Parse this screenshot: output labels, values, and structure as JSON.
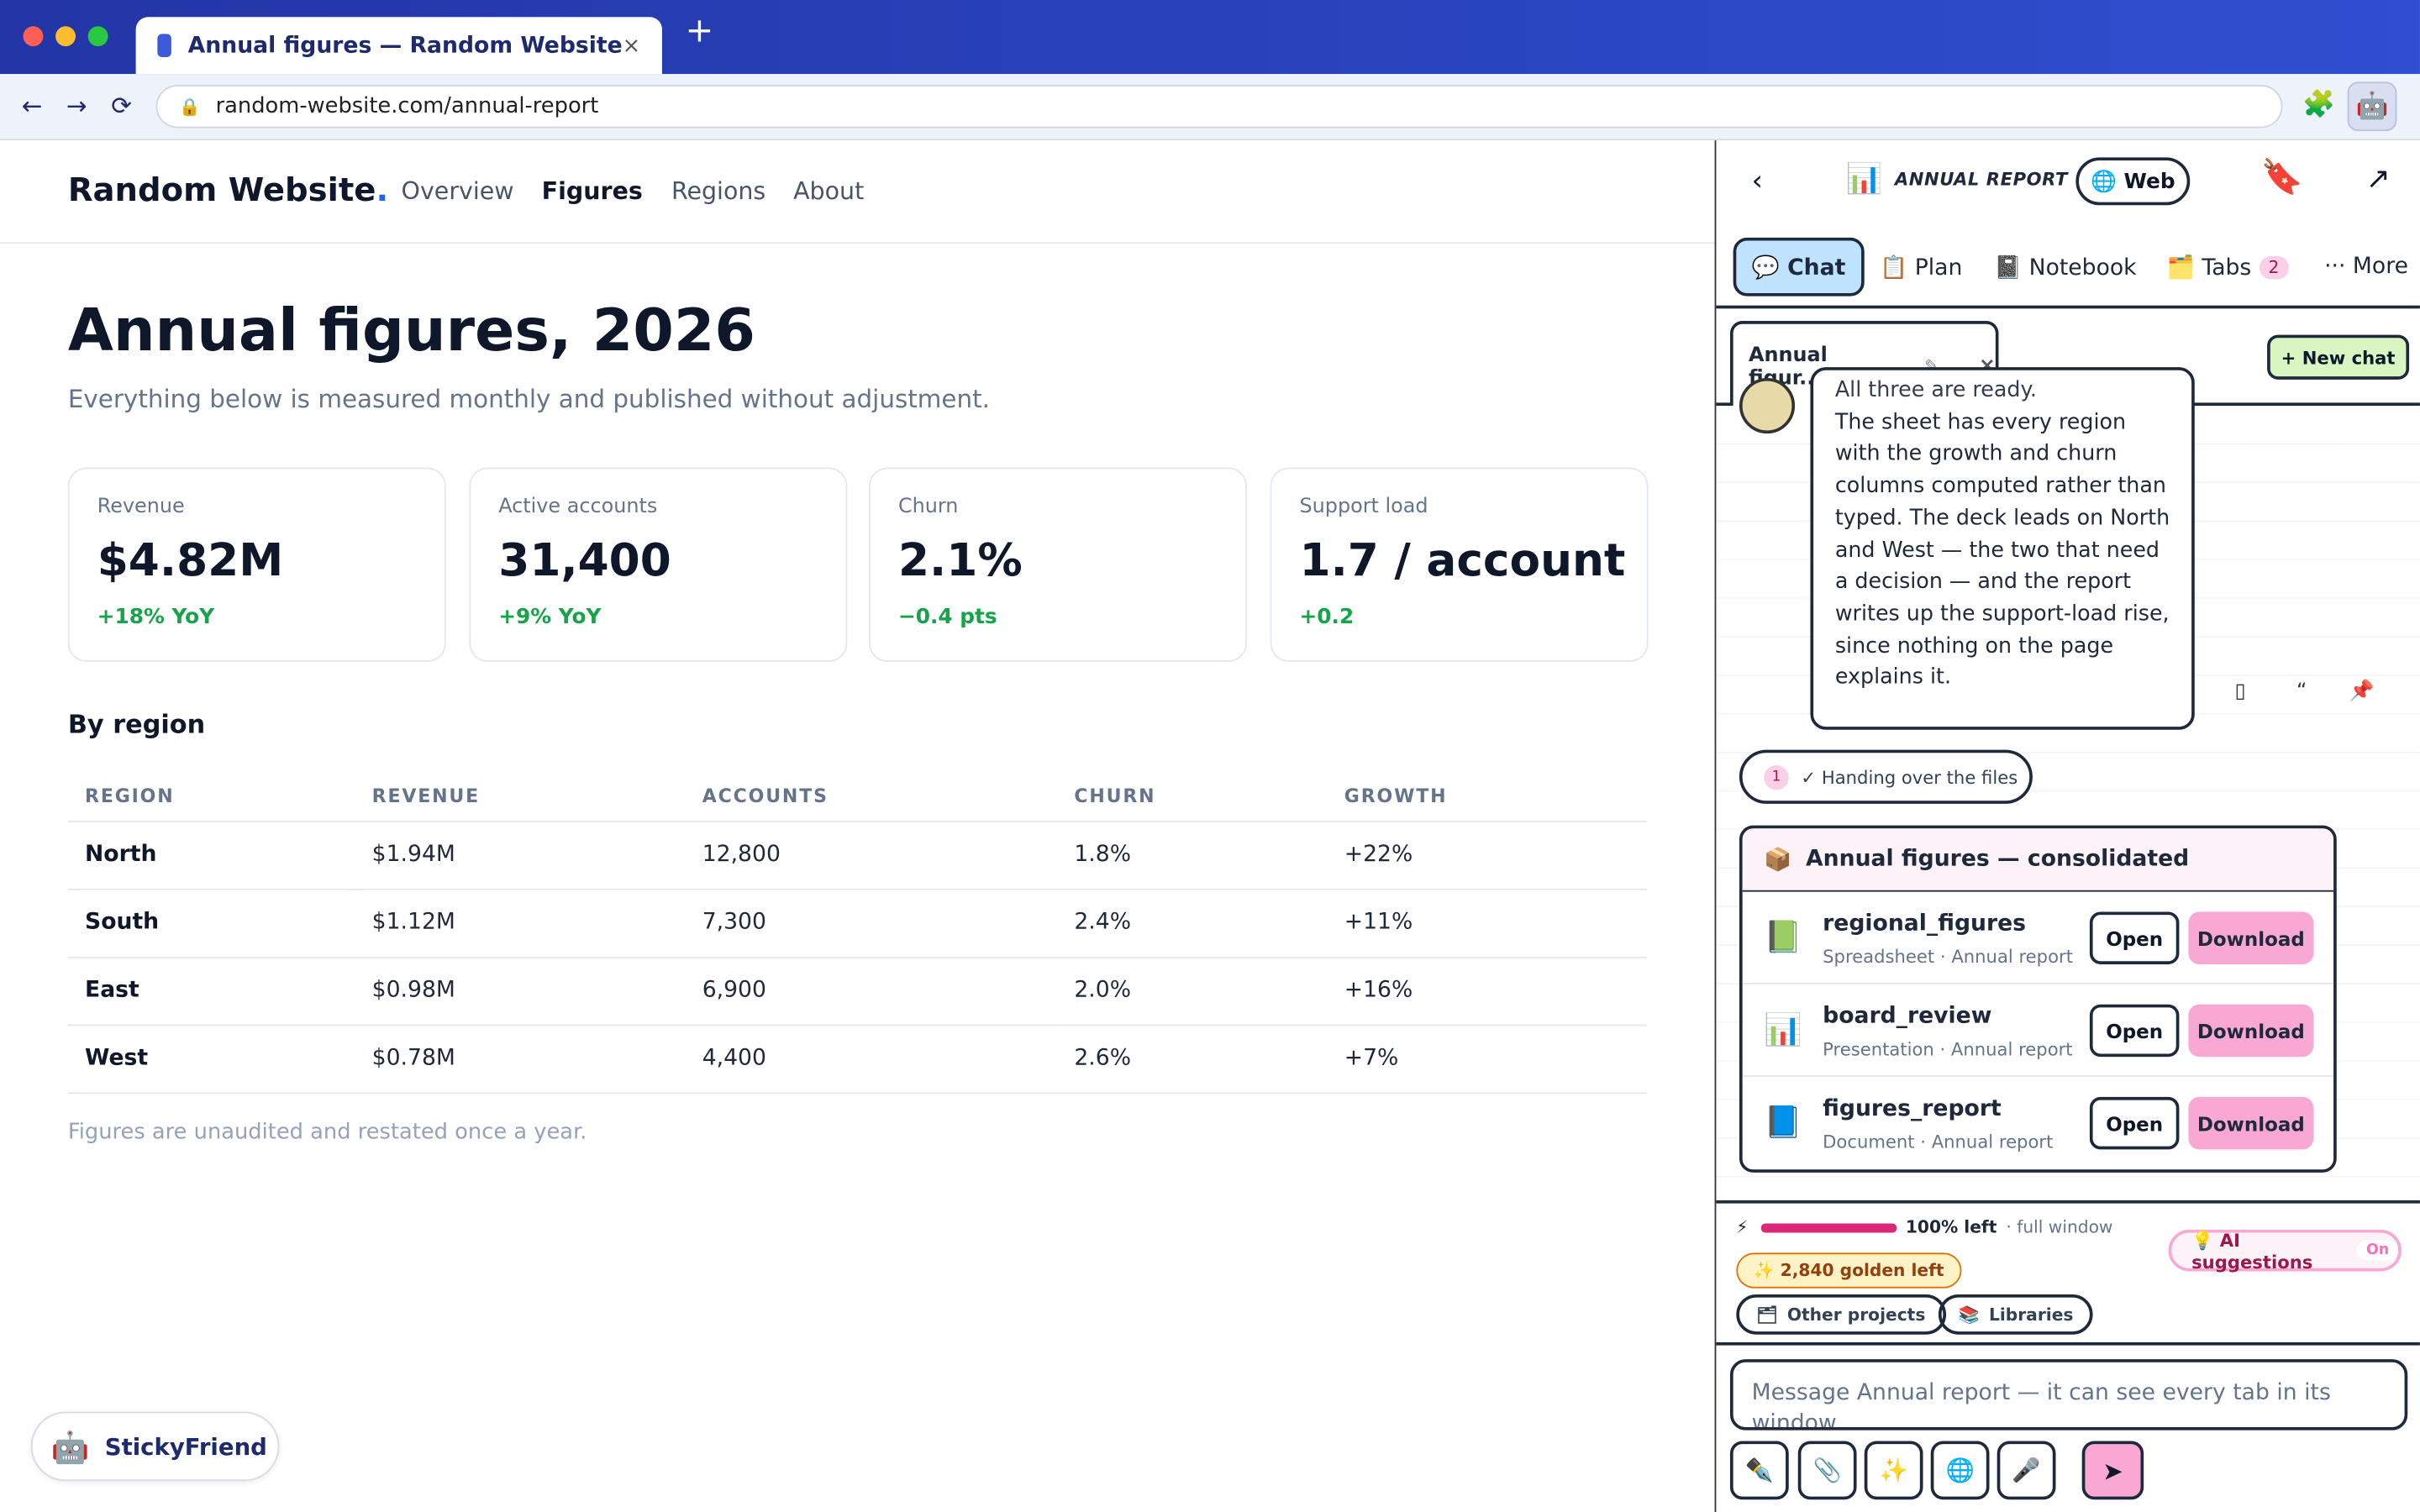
{
  "browser": {
    "tab_title": "Annual figures — Random Website",
    "tab_close": "×",
    "new_tab": "+",
    "back": "←",
    "forward": "→",
    "reload": "⟳",
    "url": "random-website.com/annual-report",
    "extension_icon": "puzzle-icon",
    "colors": {
      "tabbar": "#2f4fd0",
      "accent": "#2563eb"
    }
  },
  "site": {
    "logo": "Random Website",
    "logo_dot": ".",
    "nav": [
      "Overview",
      "Figures",
      "Regions",
      "About"
    ],
    "active_nav": "Figures",
    "title": "Annual figures, 2026",
    "subtitle": "Everything below is measured monthly and published without adjustment.",
    "cards": [
      {
        "label": "Revenue",
        "value": "$4.82M",
        "delta": "+18% YoY"
      },
      {
        "label": "Active accounts",
        "value": "31,400",
        "delta": "+9% YoY"
      },
      {
        "label": "Churn",
        "value": "2.1%",
        "delta": "−0.4 pts"
      },
      {
        "label": "Support load",
        "value": "1.7 / account",
        "delta": "+0.2"
      }
    ],
    "by_region_title": "By region",
    "table": {
      "headers": [
        "REGION",
        "REVENUE",
        "ACCOUNTS",
        "CHURN",
        "GROWTH"
      ],
      "rows": [
        [
          "North",
          "$1.94M",
          "12,800",
          "1.8%",
          "+22%"
        ],
        [
          "South",
          "$1.12M",
          "7,300",
          "2.4%",
          "+11%"
        ],
        [
          "East",
          "$0.98M",
          "6,900",
          "2.0%",
          "+16%"
        ],
        [
          "West",
          "$0.78M",
          "4,400",
          "2.6%",
          "+7%"
        ]
      ]
    },
    "footnote": "Figures are unaudited and restated once a year.",
    "sticky_label": "StickyFriend"
  },
  "panel": {
    "back": "‹",
    "title": "ANNUAL REPORT",
    "web_label": "🌐 Web",
    "popout": "↗",
    "tabs": [
      {
        "label": "💬 Chat"
      },
      {
        "label": "📋 Plan"
      },
      {
        "label": "📓 Notebook"
      },
      {
        "label": "🗂️ Tabs"
      },
      {
        "label": "··· More"
      }
    ],
    "tabs_badge": "2",
    "chat_tab": "Annual figur...",
    "chat_tab_edit": "✎",
    "chat_tab_close": "×",
    "new_chat": "+ New chat",
    "message_pre": "All three are ready.",
    "message": "The sheet has every region with the growth and churn columns computed rather than typed. The deck leads on North and West — the two that need a decision — and the report writes up the support-load rise, since nothing on the page explains it.",
    "message_actions": [
      "▯",
      "“",
      "📌"
    ],
    "step_num": "1",
    "step_label": "✓ Handing over the files",
    "files_title": "Annual figures — consolidated",
    "files": [
      {
        "icon": "📗",
        "name": "regional_figures",
        "meta": "Spreadsheet · Annual report",
        "open": "Open",
        "download": "Download"
      },
      {
        "icon": "📊",
        "name": "board_review",
        "meta": "Presentation · Annual report",
        "open": "Open",
        "download": "Download"
      },
      {
        "icon": "📘",
        "name": "figures_report",
        "meta": "Document · Annual report",
        "open": "Open",
        "download": "Download"
      }
    ],
    "meter": {
      "bolt": "⚡",
      "fraction": 1.0,
      "left": "100% left",
      "mode": "· full window"
    },
    "golden": "✨ 2,840  golden left",
    "ai_suggestions": "💡 AI suggestions",
    "ai_state": "On",
    "pills": [
      "Other projects",
      "Libraries"
    ],
    "composer_placeholder": "Message Annual report — it can see every tab in its window",
    "tools": [
      "✒️",
      "📎",
      "✨",
      "🌐",
      "🎤"
    ],
    "send": "➤"
  }
}
